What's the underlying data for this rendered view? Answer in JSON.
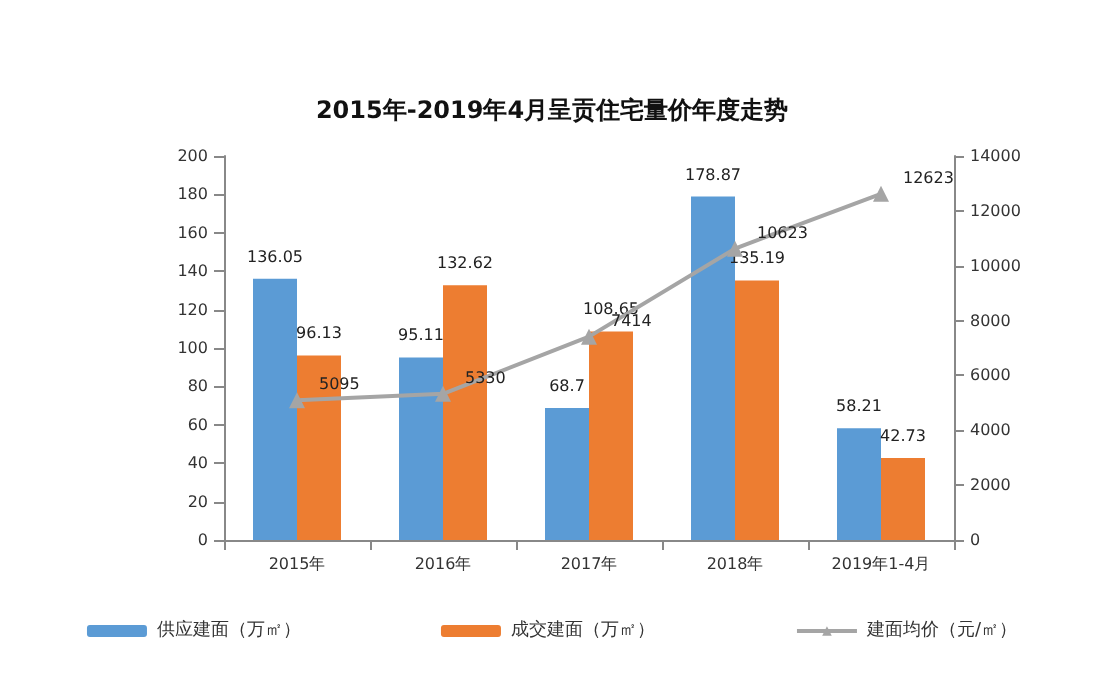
{
  "chart_data": {
    "type": "bar",
    "title": "2015年-2019年4月呈贡住宅量价年度走势",
    "categories": [
      "2015年",
      "2016年",
      "2017年",
      "2018年",
      "2019年1-4月"
    ],
    "series": [
      {
        "name": "供应建面（万㎡）",
        "color": "#5b9bd5",
        "values": [
          136.05,
          95.11,
          68.7,
          178.87,
          58.21
        ]
      },
      {
        "name": "成交建面（万㎡）",
        "color": "#ed7d31",
        "values": [
          96.13,
          132.62,
          108.65,
          135.19,
          42.73
        ]
      },
      {
        "name": "建面均价（元/㎡）",
        "type": "line",
        "axis": "y2",
        "color": "#a5a5a5",
        "marker": "triangle",
        "values": [
          5095,
          5330,
          7414,
          10623,
          12623
        ]
      }
    ],
    "ylim": [
      0,
      200
    ],
    "yticks": [
      0,
      20,
      40,
      60,
      80,
      100,
      120,
      140,
      160,
      180,
      200
    ],
    "y2lim": [
      0,
      14000
    ],
    "y2ticks": [
      0,
      2000,
      4000,
      6000,
      8000,
      10000,
      12000,
      14000
    ],
    "data_labels": true,
    "grid": false,
    "legend": "bottom"
  }
}
